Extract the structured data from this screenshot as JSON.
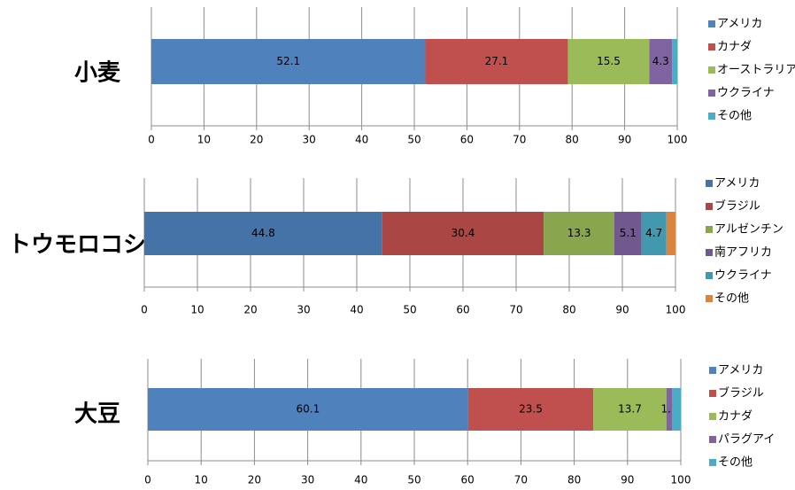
{
  "chart_data": [
    {
      "type": "bar",
      "orientation": "horizontal",
      "stacked": true,
      "title": "小麦",
      "xlim": [
        0,
        100
      ],
      "xticks": [
        0,
        10,
        20,
        30,
        40,
        50,
        60,
        70,
        80,
        90,
        100
      ],
      "grid": true,
      "legend_position": "right",
      "series": [
        {
          "name": "アメリカ",
          "value": 52.1,
          "label": "52.1",
          "color": "#4F81BD"
        },
        {
          "name": "カナダ",
          "value": 27.1,
          "label": "27.1",
          "color": "#C0504D"
        },
        {
          "name": "オーストラリア",
          "value": 15.5,
          "label": "15.5",
          "color": "#9BBB59"
        },
        {
          "name": "ウクライナ",
          "value": 4.3,
          "label": "4.3",
          "color": "#8064A2"
        },
        {
          "name": "その他",
          "value": 1.0,
          "label": "",
          "color": "#4BACC6"
        }
      ]
    },
    {
      "type": "bar",
      "orientation": "horizontal",
      "stacked": true,
      "title": "トウモロコシ",
      "xlim": [
        0,
        100
      ],
      "xticks": [
        0,
        10,
        20,
        30,
        40,
        50,
        60,
        70,
        80,
        90,
        100
      ],
      "grid": true,
      "legend_position": "right",
      "series": [
        {
          "name": "アメリカ",
          "value": 44.8,
          "label": "44.8",
          "color": "#4572A7"
        },
        {
          "name": "ブラジル",
          "value": 30.4,
          "label": "30.4",
          "color": "#AA4643"
        },
        {
          "name": "アルゼンチン",
          "value": 13.3,
          "label": "13.3",
          "color": "#89A54E"
        },
        {
          "name": "南アフリカ",
          "value": 5.1,
          "label": "5.1",
          "color": "#71588F"
        },
        {
          "name": "ウクライナ",
          "value": 4.7,
          "label": "4.7",
          "color": "#4198AF"
        },
        {
          "name": "その他",
          "value": 1.7,
          "label": "",
          "color": "#DB843D"
        }
      ]
    },
    {
      "type": "bar",
      "orientation": "horizontal",
      "stacked": true,
      "title": "大豆",
      "xlim": [
        0,
        100
      ],
      "xticks": [
        0,
        10,
        20,
        30,
        40,
        50,
        60,
        70,
        80,
        90,
        100
      ],
      "grid": true,
      "legend_position": "right",
      "series": [
        {
          "name": "アメリカ",
          "value": 60.1,
          "label": "60.1",
          "color": "#4F81BD"
        },
        {
          "name": "ブラジル",
          "value": 23.5,
          "label": "23.5",
          "color": "#C0504D"
        },
        {
          "name": "カナダ",
          "value": 13.7,
          "label": "13.7",
          "color": "#9BBB59"
        },
        {
          "name": "パラグアイ",
          "value": 1.1,
          "label": "1.1",
          "color": "#8064A2"
        },
        {
          "name": "その他",
          "value": 1.6,
          "label": "",
          "color": "#4BACC6"
        }
      ]
    }
  ]
}
